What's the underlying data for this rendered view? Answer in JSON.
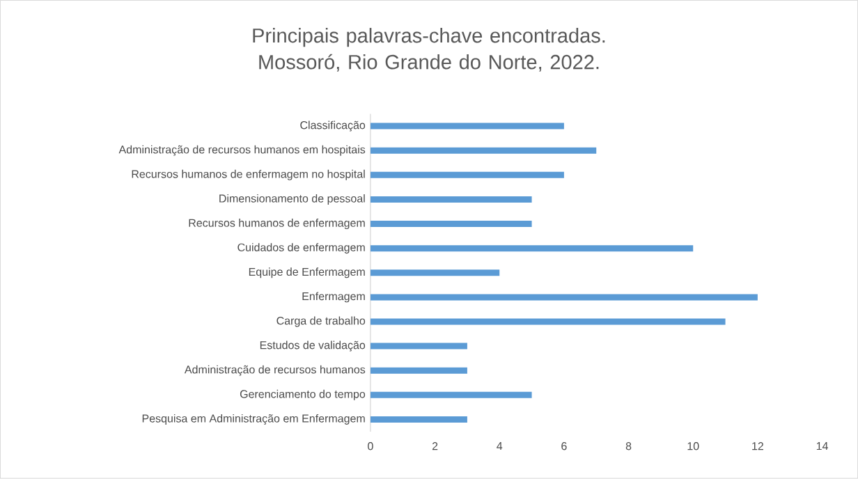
{
  "chart_data": {
    "type": "bar",
    "orientation": "horizontal",
    "title": "Principais palavras-chave encontradas. Mossoró, Rio Grande do Norte, 2022.",
    "categories": [
      "Classificação",
      "Administração de recursos humanos em hospitais",
      "Recursos humanos de enfermagem no hospital",
      "Dimensionamento de pessoal",
      "Recursos humanos de enfermagem",
      "Cuidados de enfermagem",
      "Equipe de Enfermagem",
      "Enfermagem",
      "Carga de trabalho",
      "Estudos de validação",
      "Administração de recursos humanos",
      "Gerenciamento do tempo",
      "Pesquisa em Administração em Enfermagem"
    ],
    "values": [
      6,
      7,
      6,
      5,
      5,
      10,
      4,
      12,
      11,
      3,
      3,
      5,
      3
    ],
    "color": "#5b9bd5",
    "xlim": [
      0,
      14
    ],
    "xticks": [
      0,
      2,
      4,
      6,
      8,
      10,
      12,
      14
    ]
  }
}
